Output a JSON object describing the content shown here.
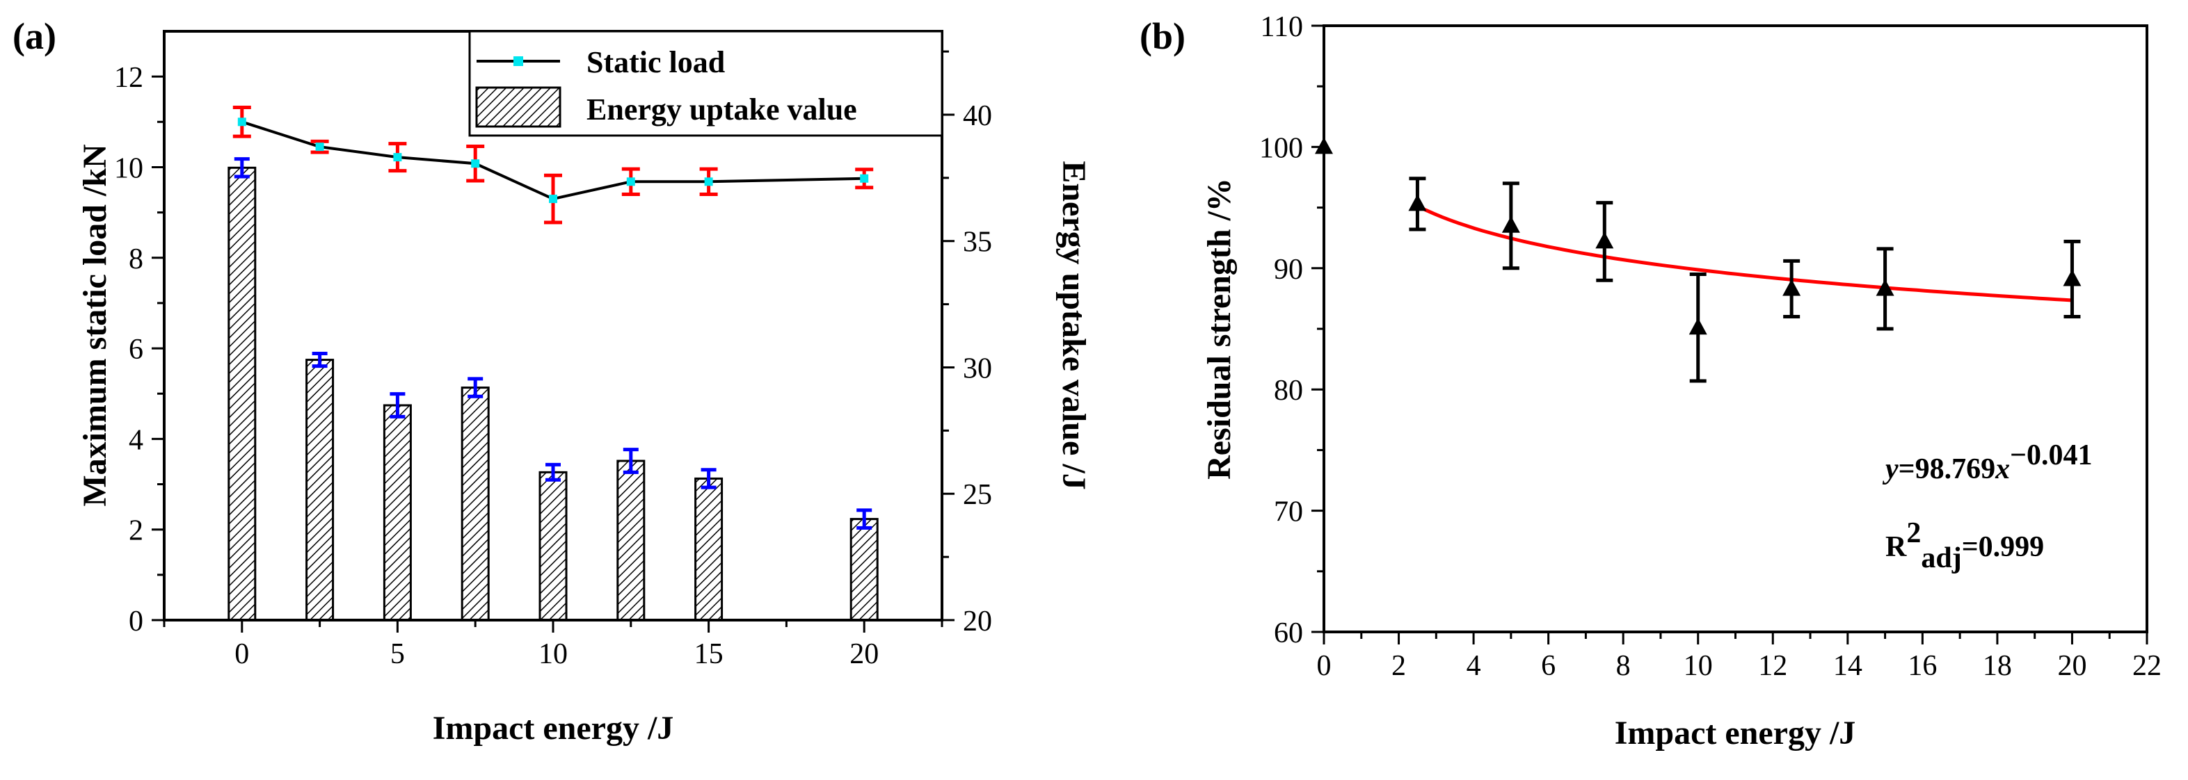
{
  "panel_a": {
    "label": "(a)",
    "xlabel": "Impact energy /J",
    "ylabel_left": "Maximum static load /kN",
    "ylabel_right": "Energy uptake value /J",
    "x_ticks": [
      "0",
      "5",
      "10",
      "15",
      "20"
    ],
    "y_left_ticks": [
      "0",
      "2",
      "4",
      "6",
      "8",
      "10",
      "12"
    ],
    "y_right_ticks": [
      "20",
      "25",
      "30",
      "35",
      "40"
    ],
    "legend": {
      "line_label": "Static load",
      "bar_label": "Energy uptake value"
    }
  },
  "panel_b": {
    "label": "(b)",
    "xlabel": "Impact energy /J",
    "ylabel": "Residual strength /%",
    "x_ticks": [
      "0",
      "2",
      "4",
      "6",
      "8",
      "10",
      "12",
      "14",
      "16",
      "18",
      "20",
      "22"
    ],
    "y_ticks": [
      "60",
      "70",
      "80",
      "90",
      "100",
      "110"
    ],
    "equation": {
      "lhs": "y",
      "mid": "=98.769",
      "var": "x",
      "exp": "−0.041"
    },
    "r2": {
      "base": "R",
      "sup": "2",
      "sub": "adj",
      "value": "=0.999"
    }
  },
  "chart_data": [
    {
      "type": "bar",
      "x": [
        0,
        2.5,
        5,
        7.5,
        10,
        12.5,
        15,
        20
      ],
      "xlabel": "Impact energy /J",
      "xlim": [
        -2.5,
        22.5
      ],
      "series": [
        {
          "name": "Static load",
          "type": "line",
          "axis": "left",
          "values": [
            11.0,
            10.45,
            10.22,
            10.08,
            9.3,
            9.68,
            9.68,
            9.75
          ],
          "errors": [
            0.32,
            0.12,
            0.3,
            0.38,
            0.52,
            0.28,
            0.28,
            0.2
          ]
        },
        {
          "name": "Energy uptake value",
          "type": "bar",
          "axis": "right",
          "values": [
            37.9,
            30.3,
            28.5,
            29.2,
            25.85,
            26.3,
            25.6,
            24.0
          ],
          "errors": [
            0.35,
            0.25,
            0.45,
            0.35,
            0.3,
            0.45,
            0.35,
            0.35
          ]
        }
      ],
      "ylabel": "Maximum static load /kN",
      "ylim": [
        0,
        13.0
      ],
      "ylabel_right": "Energy uptake value /J",
      "ylim_right": [
        20,
        43.3
      ],
      "legend": "top-right",
      "colors": {
        "line": "#000000",
        "line_marker": "#00e5ee",
        "line_errorbars": "#ff0000",
        "bar_errorbars": "#0000ff",
        "bar_fill": "hatched"
      }
    },
    {
      "type": "scatter",
      "x": [
        0,
        2.5,
        5,
        7.5,
        10,
        12.5,
        15,
        20
      ],
      "y": [
        100,
        95.3,
        93.5,
        92.2,
        85.1,
        88.3,
        88.3,
        89.1
      ],
      "errors": [
        0,
        2.1,
        3.5,
        3.2,
        4.4,
        2.3,
        3.3,
        3.1
      ],
      "xlabel": "Impact energy /J",
      "ylabel": "Residual strength /%",
      "xlim": [
        0,
        22
      ],
      "ylim": [
        60,
        110
      ],
      "fit": {
        "equation": "y=98.769x^-0.041",
        "a": 98.769,
        "b": -0.041,
        "x_from": 2.5,
        "x_to": 20,
        "r2_adj": 0.999,
        "color": "#ff0000"
      },
      "marker": "triangle"
    }
  ]
}
